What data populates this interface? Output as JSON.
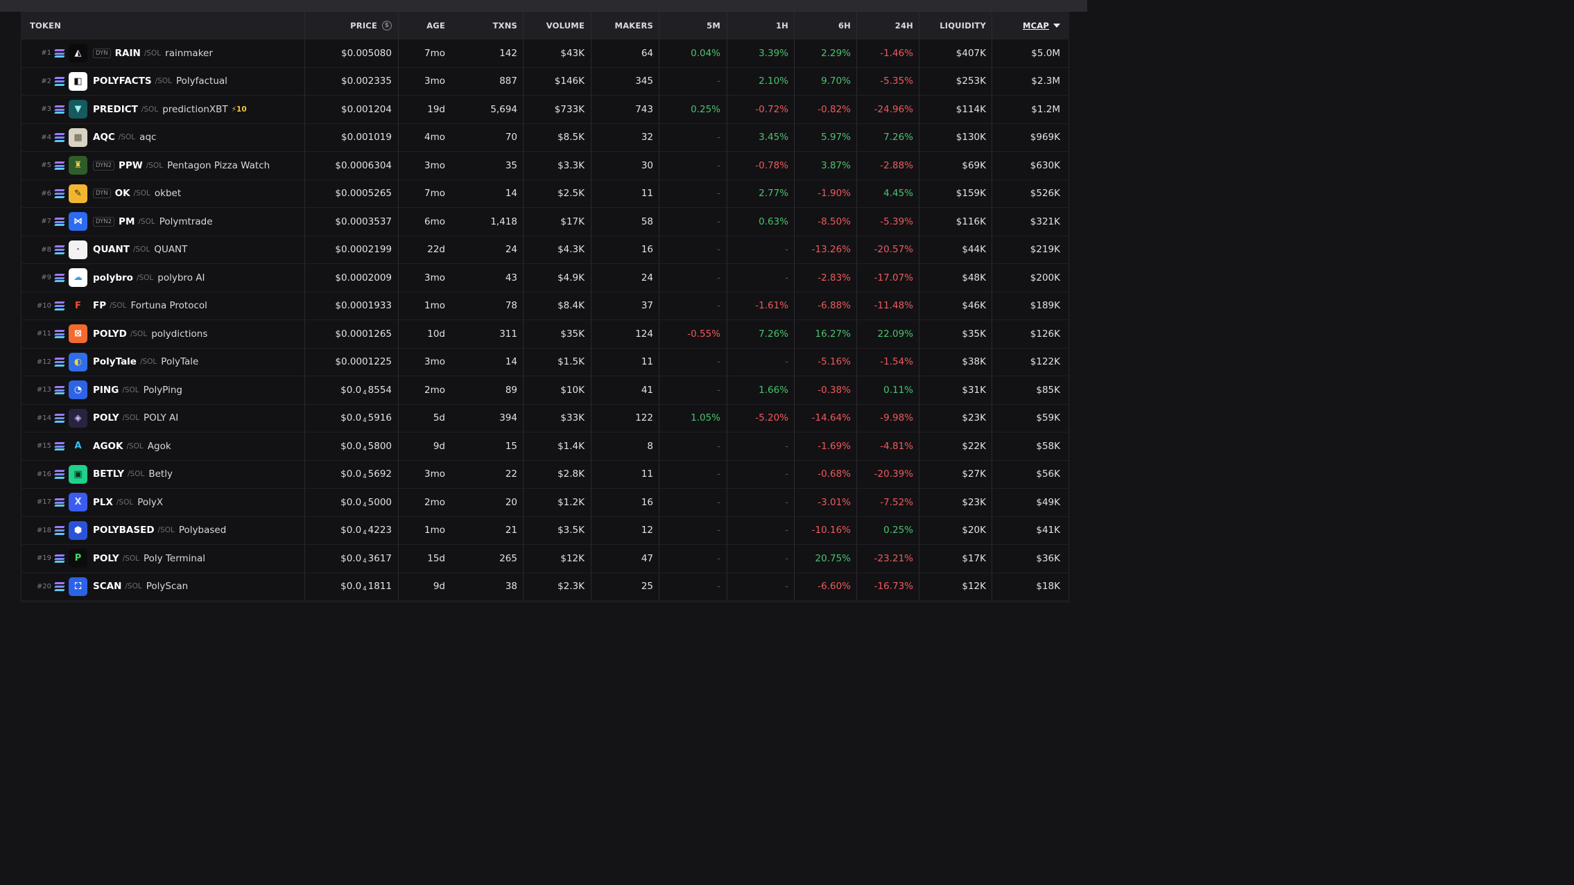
{
  "header": {
    "token": "TOKEN",
    "price": "PRICE",
    "age": "AGE",
    "txns": "TXNS",
    "volume": "VOLUME",
    "makers": "MAKERS",
    "m5": "5M",
    "h1": "1H",
    "h6": "6H",
    "h24": "24H",
    "liquidity": "LIQUIDITY",
    "mcap": "MCAP",
    "dollar_symbol": "$"
  },
  "colors": {
    "positive": "#4cc36b",
    "negative": "#ef5a5a"
  },
  "rows": [
    {
      "rank": "#1",
      "dyn": "DYN",
      "symbol": "RAIN",
      "chain": "/SOL",
      "name": "rainmaker",
      "boost": "",
      "price_pre": "$0.005080",
      "price_sub": "",
      "price_post": "",
      "age": "7mo",
      "txns": "142",
      "volume": "$43K",
      "makers": "64",
      "m5": "0.04%",
      "h1": "3.39%",
      "h6": "2.29%",
      "h24": "-1.46%",
      "liquidity": "$407K",
      "mcap": "$5.0M",
      "logo_bg": "#0b0b0b",
      "logo_fg": "#ffffff",
      "logo_text": "◭"
    },
    {
      "rank": "#2",
      "dyn": "",
      "symbol": "POLYFACTS",
      "chain": "/SOL",
      "name": "Polyfactual",
      "boost": "",
      "price_pre": "$0.002335",
      "price_sub": "",
      "price_post": "",
      "age": "3mo",
      "txns": "887",
      "volume": "$146K",
      "makers": "345",
      "m5": "-",
      "h1": "2.10%",
      "h6": "9.70%",
      "h24": "-5.35%",
      "liquidity": "$253K",
      "mcap": "$2.3M",
      "logo_bg": "#ffffff",
      "logo_fg": "#111111",
      "logo_text": "◧"
    },
    {
      "rank": "#3",
      "dyn": "",
      "symbol": "PREDICT",
      "chain": "/SOL",
      "name": "predictionXBT",
      "boost": "⚡10",
      "price_pre": "$0.001204",
      "price_sub": "",
      "price_post": "",
      "age": "19d",
      "txns": "5,694",
      "volume": "$733K",
      "makers": "743",
      "m5": "0.25%",
      "h1": "-0.72%",
      "h6": "-0.82%",
      "h24": "-24.96%",
      "liquidity": "$114K",
      "mcap": "$1.2M",
      "logo_bg": "#145a5e",
      "logo_fg": "#9ff0e8",
      "logo_text": "▼"
    },
    {
      "rank": "#4",
      "dyn": "",
      "symbol": "AQC",
      "chain": "/SOL",
      "name": "aqc",
      "boost": "",
      "price_pre": "$0.001019",
      "price_sub": "",
      "price_post": "",
      "age": "4mo",
      "txns": "70",
      "volume": "$8.5K",
      "makers": "32",
      "m5": "-",
      "h1": "3.45%",
      "h6": "5.97%",
      "h24": "7.26%",
      "liquidity": "$130K",
      "mcap": "$969K",
      "logo_bg": "#d8d3c3",
      "logo_fg": "#5a5a40",
      "logo_text": "▦"
    },
    {
      "rank": "#5",
      "dyn": "DYN2",
      "symbol": "PPW",
      "chain": "/SOL",
      "name": "Pentagon Pizza Watch",
      "boost": "",
      "price_pre": "$0.0006304",
      "price_sub": "",
      "price_post": "",
      "age": "3mo",
      "txns": "35",
      "volume": "$3.3K",
      "makers": "30",
      "m5": "-",
      "h1": "-0.78%",
      "h6": "3.87%",
      "h24": "-2.88%",
      "liquidity": "$69K",
      "mcap": "$630K",
      "logo_bg": "#2e5d2a",
      "logo_fg": "#f2c94c",
      "logo_text": "♜"
    },
    {
      "rank": "#6",
      "dyn": "DYN",
      "symbol": "OK",
      "chain": "/SOL",
      "name": "okbet",
      "boost": "",
      "price_pre": "$0.0005265",
      "price_sub": "",
      "price_post": "",
      "age": "7mo",
      "txns": "14",
      "volume": "$2.5K",
      "makers": "11",
      "m5": "-",
      "h1": "2.77%",
      "h6": "-1.90%",
      "h24": "4.45%",
      "liquidity": "$159K",
      "mcap": "$526K",
      "logo_bg": "#f3b530",
      "logo_fg": "#3a2a00",
      "logo_text": "✎"
    },
    {
      "rank": "#7",
      "dyn": "DYN2",
      "symbol": "PM",
      "chain": "/SOL",
      "name": "Polymtrade",
      "boost": "",
      "price_pre": "$0.0003537",
      "price_sub": "",
      "price_post": "",
      "age": "6mo",
      "txns": "1,418",
      "volume": "$17K",
      "makers": "58",
      "m5": "-",
      "h1": "0.63%",
      "h6": "-8.50%",
      "h24": "-5.39%",
      "liquidity": "$116K",
      "mcap": "$321K",
      "logo_bg": "#2d6cf0",
      "logo_fg": "#ffffff",
      "logo_text": "⋈"
    },
    {
      "rank": "#8",
      "dyn": "",
      "symbol": "QUANT",
      "chain": "/SOL",
      "name": "QUANT",
      "boost": "",
      "price_pre": "$0.0002199",
      "price_sub": "",
      "price_post": "",
      "age": "22d",
      "txns": "24",
      "volume": "$4.3K",
      "makers": "16",
      "m5": "-",
      "h1": "-",
      "h6": "-13.26%",
      "h24": "-20.57%",
      "liquidity": "$44K",
      "mcap": "$219K",
      "logo_bg": "#f2f2f2",
      "logo_fg": "#777777",
      "logo_text": "·"
    },
    {
      "rank": "#9",
      "dyn": "",
      "symbol": "polybro",
      "chain": "/SOL",
      "name": "polybro AI",
      "boost": "",
      "price_pre": "$0.0002009",
      "price_sub": "",
      "price_post": "",
      "age": "3mo",
      "txns": "43",
      "volume": "$4.9K",
      "makers": "24",
      "m5": "-",
      "h1": "-",
      "h6": "-2.83%",
      "h24": "-17.07%",
      "liquidity": "$48K",
      "mcap": "$200K",
      "logo_bg": "#ffffff",
      "logo_fg": "#3aa0e8",
      "logo_text": "☁"
    },
    {
      "rank": "#10",
      "dyn": "",
      "symbol": "FP",
      "chain": "/SOL",
      "name": "Fortuna Protocol",
      "boost": "",
      "price_pre": "$0.0001933",
      "price_sub": "",
      "price_post": "",
      "age": "1mo",
      "txns": "78",
      "volume": "$8.4K",
      "makers": "37",
      "m5": "-",
      "h1": "-1.61%",
      "h6": "-6.88%",
      "h24": "-11.48%",
      "liquidity": "$46K",
      "mcap": "$189K",
      "logo_bg": "#111111",
      "logo_fg": "#ff4a2a",
      "logo_text": "F"
    },
    {
      "rank": "#11",
      "dyn": "",
      "symbol": "POLYD",
      "chain": "/SOL",
      "name": "polydictions",
      "boost": "",
      "price_pre": "$0.0001265",
      "price_sub": "",
      "price_post": "",
      "age": "10d",
      "txns": "311",
      "volume": "$35K",
      "makers": "124",
      "m5": "-0.55%",
      "h1": "7.26%",
      "h6": "16.27%",
      "h24": "22.09%",
      "liquidity": "$35K",
      "mcap": "$126K",
      "logo_bg": "#f26a2e",
      "logo_fg": "#ffffff",
      "logo_text": "⊠"
    },
    {
      "rank": "#12",
      "dyn": "",
      "symbol": "PolyTale",
      "chain": "/SOL",
      "name": "PolyTale",
      "boost": "",
      "price_pre": "$0.0001225",
      "price_sub": "",
      "price_post": "",
      "age": "3mo",
      "txns": "14",
      "volume": "$1.5K",
      "makers": "11",
      "m5": "-",
      "h1": "-",
      "h6": "-5.16%",
      "h24": "-1.54%",
      "liquidity": "$38K",
      "mcap": "$122K",
      "logo_bg": "#2f6ee8",
      "logo_fg": "#f5d142",
      "logo_text": "◐"
    },
    {
      "rank": "#13",
      "dyn": "",
      "symbol": "PING",
      "chain": "/SOL",
      "name": "PolyPing",
      "boost": "",
      "price_pre": "$0.0",
      "price_sub": "4",
      "price_post": "8554",
      "age": "2mo",
      "txns": "89",
      "volume": "$10K",
      "makers": "41",
      "m5": "-",
      "h1": "1.66%",
      "h6": "-0.38%",
      "h24": "0.11%",
      "liquidity": "$31K",
      "mcap": "$85K",
      "logo_bg": "#2e63e6",
      "logo_fg": "#ffffff",
      "logo_text": "◔"
    },
    {
      "rank": "#14",
      "dyn": "",
      "symbol": "POLY",
      "chain": "/SOL",
      "name": "POLY AI",
      "boost": "",
      "price_pre": "$0.0",
      "price_sub": "4",
      "price_post": "5916",
      "age": "5d",
      "txns": "394",
      "volume": "$33K",
      "makers": "122",
      "m5": "1.05%",
      "h1": "-5.20%",
      "h6": "-14.64%",
      "h24": "-9.98%",
      "liquidity": "$23K",
      "mcap": "$59K",
      "logo_bg": "#2a2340",
      "logo_fg": "#c9c3ff",
      "logo_text": "◈"
    },
    {
      "rank": "#15",
      "dyn": "",
      "symbol": "AGOK",
      "chain": "/SOL",
      "name": "Agok",
      "boost": "",
      "price_pre": "$0.0",
      "price_sub": "4",
      "price_post": "5800",
      "age": "9d",
      "txns": "15",
      "volume": "$1.4K",
      "makers": "8",
      "m5": "-",
      "h1": "-",
      "h6": "-1.69%",
      "h24": "-4.81%",
      "liquidity": "$22K",
      "mcap": "$58K",
      "logo_bg": "#121215",
      "logo_fg": "#35c4f0",
      "logo_text": "A"
    },
    {
      "rank": "#16",
      "dyn": "",
      "symbol": "BETLY",
      "chain": "/SOL",
      "name": "Betly",
      "boost": "",
      "price_pre": "$0.0",
      "price_sub": "4",
      "price_post": "5692",
      "age": "3mo",
      "txns": "22",
      "volume": "$2.8K",
      "makers": "11",
      "m5": "-",
      "h1": "-",
      "h6": "-0.68%",
      "h24": "-20.39%",
      "liquidity": "$27K",
      "mcap": "$56K",
      "logo_bg": "#1fd18a",
      "logo_fg": "#0a2a1a",
      "logo_text": "▣"
    },
    {
      "rank": "#17",
      "dyn": "",
      "symbol": "PLX",
      "chain": "/SOL",
      "name": "PolyX",
      "boost": "",
      "price_pre": "$0.0",
      "price_sub": "4",
      "price_post": "5000",
      "age": "2mo",
      "txns": "20",
      "volume": "$1.2K",
      "makers": "16",
      "m5": "-",
      "h1": "-",
      "h6": "-3.01%",
      "h24": "-7.52%",
      "liquidity": "$23K",
      "mcap": "$49K",
      "logo_bg": "#3a5cf0",
      "logo_fg": "#dfe6ff",
      "logo_text": "X"
    },
    {
      "rank": "#18",
      "dyn": "",
      "symbol": "POLYBASED",
      "chain": "/SOL",
      "name": "Polybased",
      "boost": "",
      "price_pre": "$0.0",
      "price_sub": "4",
      "price_post": "4223",
      "age": "1mo",
      "txns": "21",
      "volume": "$3.5K",
      "makers": "12",
      "m5": "-",
      "h1": "-",
      "h6": "-10.16%",
      "h24": "0.25%",
      "liquidity": "$20K",
      "mcap": "$41K",
      "logo_bg": "#2a54d8",
      "logo_fg": "#ffffff",
      "logo_text": "⬢"
    },
    {
      "rank": "#19",
      "dyn": "",
      "symbol": "POLY",
      "chain": "/SOL",
      "name": "Poly Terminal",
      "boost": "",
      "price_pre": "$0.0",
      "price_sub": "4",
      "price_post": "3617",
      "age": "15d",
      "txns": "265",
      "volume": "$12K",
      "makers": "47",
      "m5": "-",
      "h1": "-",
      "h6": "20.75%",
      "h24": "-23.21%",
      "liquidity": "$17K",
      "mcap": "$36K",
      "logo_bg": "#0c0c0c",
      "logo_fg": "#3fdc6a",
      "logo_text": "P"
    },
    {
      "rank": "#20",
      "dyn": "",
      "symbol": "SCAN",
      "chain": "/SOL",
      "name": "PolyScan",
      "boost": "",
      "price_pre": "$0.0",
      "price_sub": "4",
      "price_post": "1811",
      "age": "9d",
      "txns": "38",
      "volume": "$2.3K",
      "makers": "25",
      "m5": "-",
      "h1": "-",
      "h6": "-6.60%",
      "h24": "-16.73%",
      "liquidity": "$12K",
      "mcap": "$18K",
      "logo_bg": "#2c62ea",
      "logo_fg": "#ffffff",
      "logo_text": "⛶"
    }
  ]
}
